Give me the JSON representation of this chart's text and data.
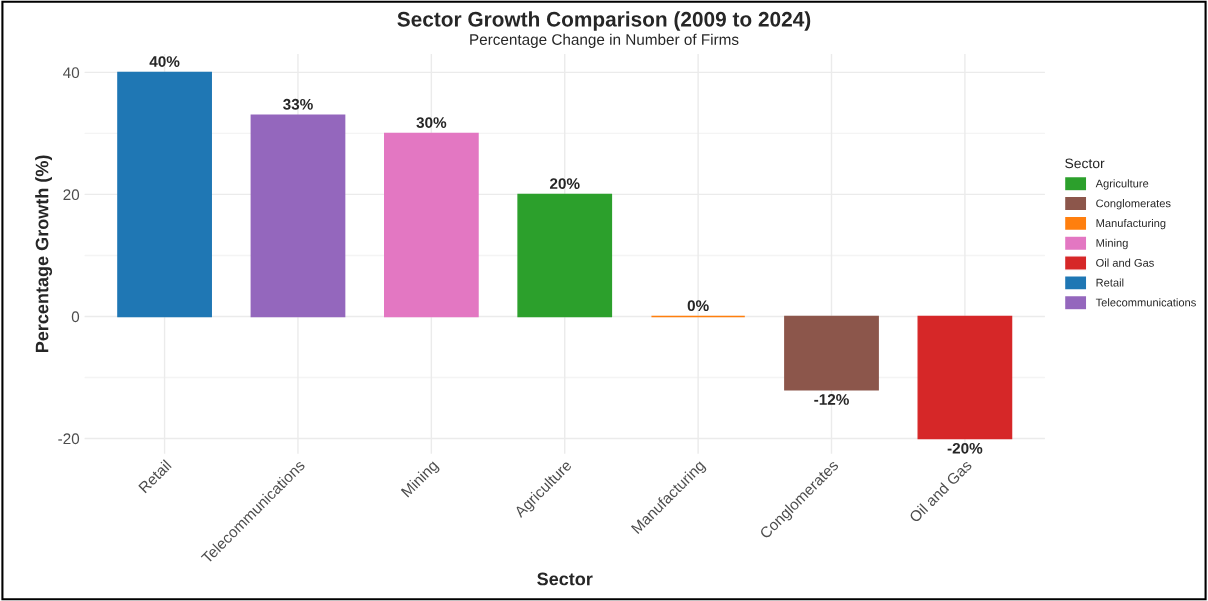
{
  "chart_data": {
    "type": "bar",
    "title": "Sector Growth Comparison (2009 to 2024)",
    "subtitle": "Percentage Change in Number of Firms",
    "xlabel": "Sector",
    "ylabel": "Percentage Growth (%)",
    "legend_title": "Sector",
    "categories": [
      "Retail",
      "Telecommunications",
      "Mining",
      "Agriculture",
      "Manufacturing",
      "Conglomerates",
      "Oil and Gas"
    ],
    "series": [
      {
        "name": "Agriculture",
        "color": "#2ca02c",
        "values": [
          null,
          null,
          null,
          20,
          null,
          null,
          null
        ],
        "value_labels": [
          null,
          null,
          null,
          "20%",
          null,
          null,
          null
        ]
      },
      {
        "name": "Conglomerates",
        "color": "#8c564b",
        "values": [
          null,
          null,
          null,
          null,
          null,
          -12,
          null
        ],
        "value_labels": [
          null,
          null,
          null,
          null,
          null,
          "-12%",
          null
        ]
      },
      {
        "name": "Manufacturing",
        "color": "#ff7f0e",
        "values": [
          null,
          null,
          null,
          null,
          0,
          null,
          null
        ],
        "value_labels": [
          null,
          null,
          null,
          null,
          "0%",
          null,
          null
        ]
      },
      {
        "name": "Mining",
        "color": "#e377c2",
        "values": [
          null,
          null,
          30,
          null,
          null,
          null,
          null
        ],
        "value_labels": [
          null,
          null,
          "30%",
          null,
          null,
          null,
          null
        ]
      },
      {
        "name": "Oil and Gas",
        "color": "#d62728",
        "values": [
          null,
          null,
          null,
          null,
          null,
          null,
          -20
        ],
        "value_labels": [
          null,
          null,
          null,
          null,
          null,
          null,
          "-20%"
        ]
      },
      {
        "name": "Retail",
        "color": "#1f77b4",
        "values": [
          40,
          null,
          null,
          null,
          null,
          null,
          null
        ],
        "value_labels": [
          "40%",
          null,
          null,
          null,
          null,
          null,
          null
        ]
      },
      {
        "name": "Telecommunications",
        "color": "#9467bd",
        "values": [
          null,
          33,
          null,
          null,
          null,
          null,
          null
        ],
        "value_labels": [
          null,
          "33%",
          null,
          null,
          null,
          null,
          null
        ]
      }
    ],
    "ylim": [
      -22.5,
      43
    ],
    "yticks": [
      -20,
      {
        "value": -10,
        "label": null
      },
      0,
      {
        "value": 10,
        "label": null
      },
      20,
      {
        "value": 30,
        "label": null
      },
      40
    ],
    "grid": true,
    "legend": "right"
  }
}
